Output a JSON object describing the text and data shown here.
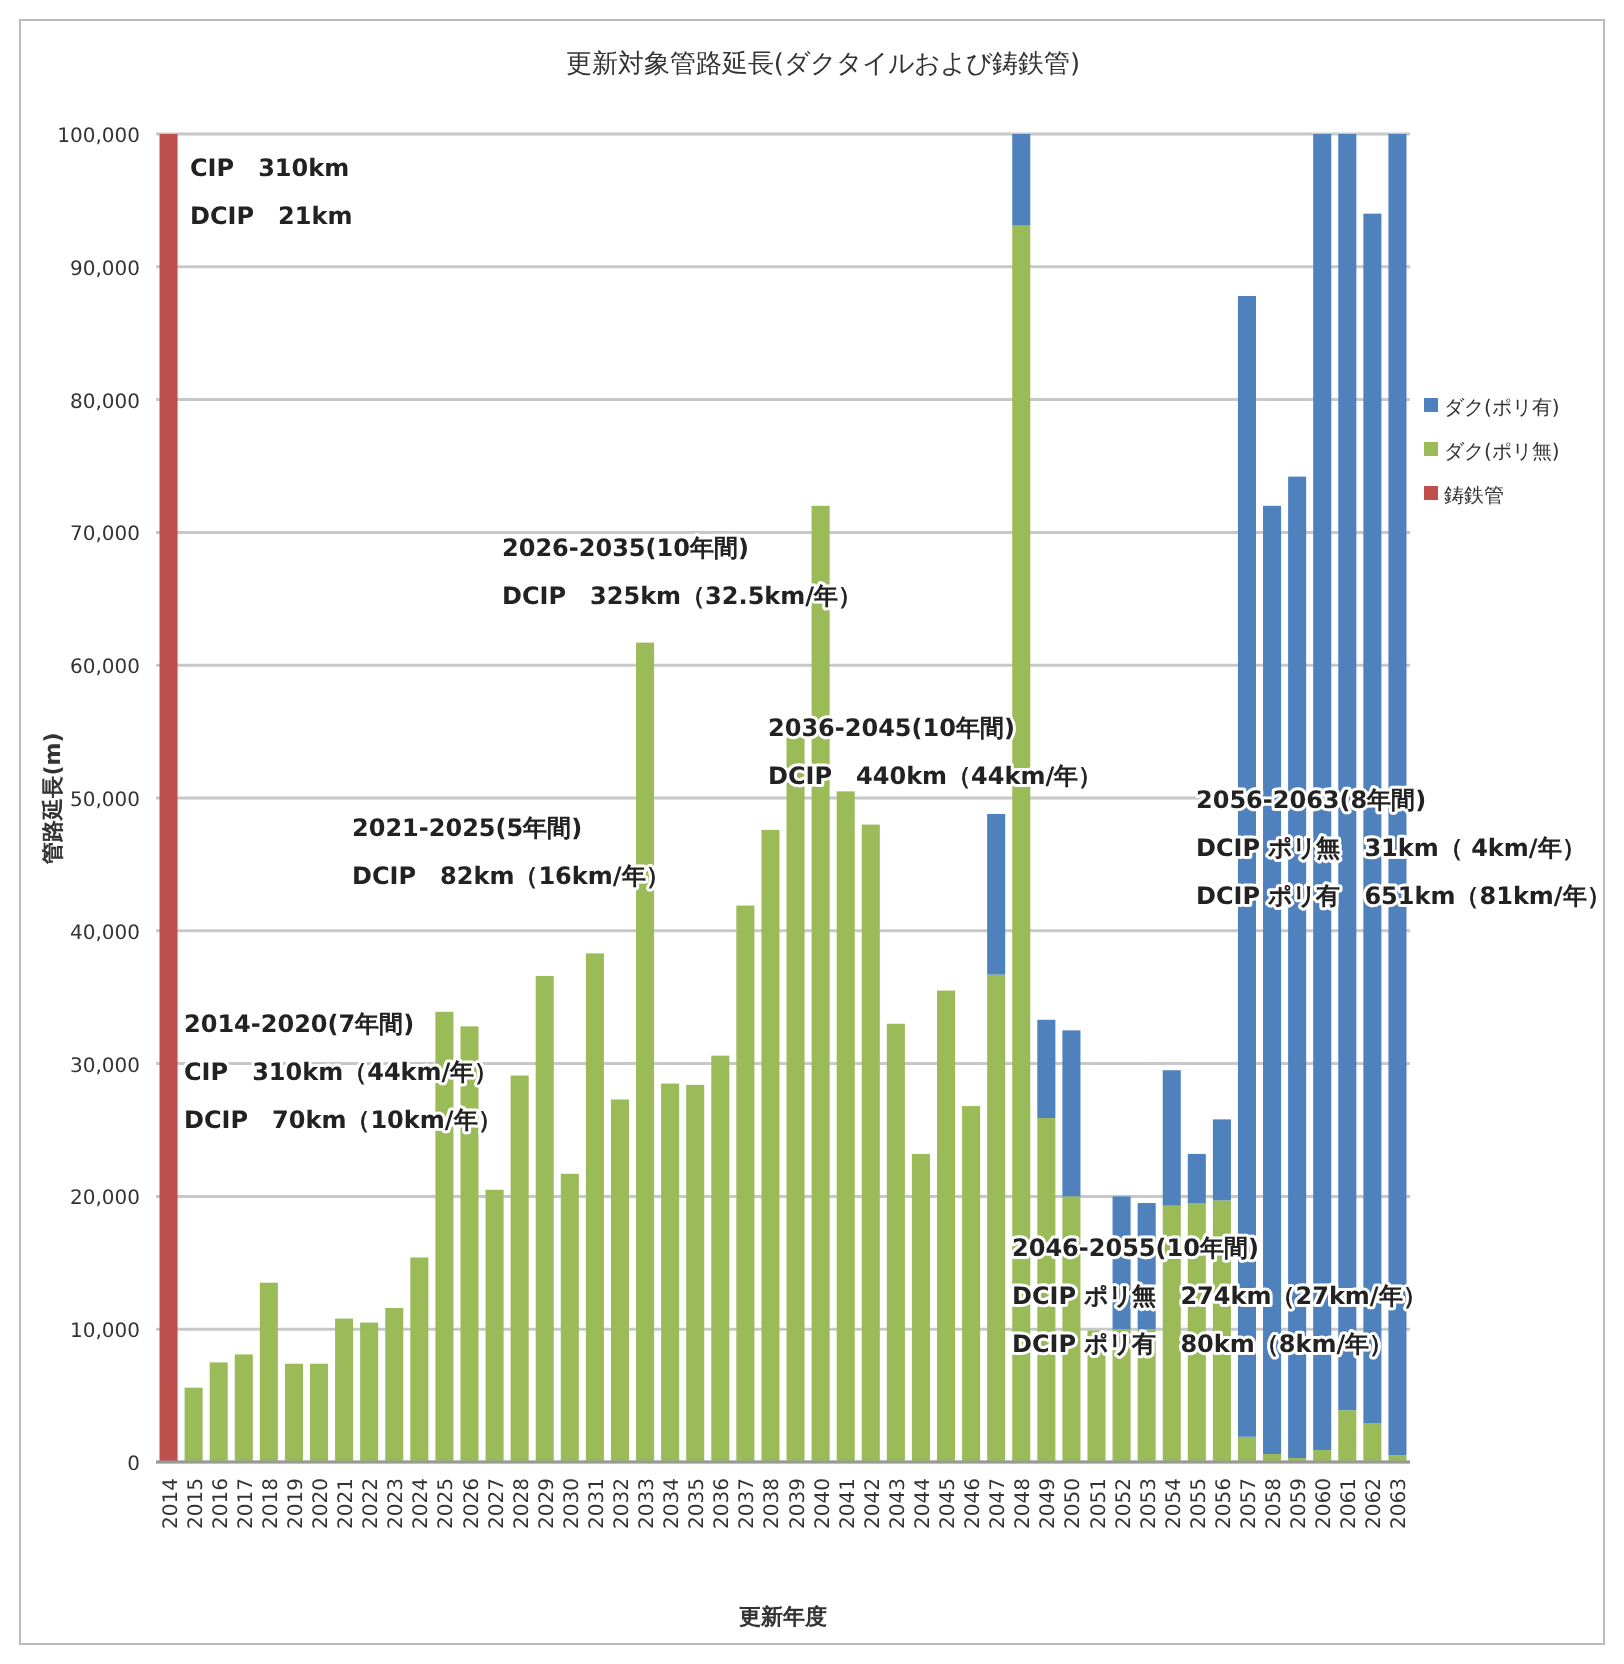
{
  "chart_data": {
    "type": "bar",
    "stacked": true,
    "title": "更新対象管路延長(ダクタイルおよび鋳鉄管)",
    "xlabel": "更新年度",
    "ylabel": "管路延長(m)",
    "categories": [
      "2014",
      "2015",
      "2016",
      "2017",
      "2018",
      "2019",
      "2020",
      "2021",
      "2022",
      "2023",
      "2024",
      "2025",
      "2026",
      "2027",
      "2028",
      "2029",
      "2030",
      "2031",
      "2032",
      "2033",
      "2034",
      "2035",
      "2036",
      "2037",
      "2038",
      "2039",
      "2040",
      "2041",
      "2042",
      "2043",
      "2044",
      "2045",
      "2046",
      "2047",
      "2048",
      "2049",
      "2050",
      "2051",
      "2052",
      "2053",
      "2054",
      "2055",
      "2056",
      "2057",
      "2058",
      "2059",
      "2060",
      "2061",
      "2062",
      "2063"
    ],
    "series": [
      {
        "name": "鋳鉄管",
        "color": "#c0504d",
        "values": [
          100000,
          0,
          0,
          0,
          0,
          0,
          0,
          0,
          0,
          0,
          0,
          0,
          0,
          0,
          0,
          0,
          0,
          0,
          0,
          0,
          0,
          0,
          0,
          0,
          0,
          0,
          0,
          0,
          0,
          0,
          0,
          0,
          0,
          0,
          0,
          0,
          0,
          0,
          0,
          0,
          0,
          0,
          0,
          0,
          0,
          0,
          0,
          0,
          0,
          0
        ]
      },
      {
        "name": "ダク(ポリ無)",
        "color": "#9bbb59",
        "values": [
          0,
          5600,
          7500,
          8100,
          13500,
          7400,
          7400,
          10800,
          10500,
          11600,
          15400,
          33900,
          32800,
          20500,
          29100,
          36600,
          21700,
          38300,
          27300,
          61700,
          28500,
          28400,
          30600,
          41900,
          47600,
          54800,
          72000,
          50500,
          48000,
          33000,
          23200,
          35500,
          26800,
          36700,
          93100,
          25900,
          20000,
          9900,
          10000,
          10000,
          19300,
          19500,
          19700,
          1900,
          600,
          300,
          900,
          3900,
          2900,
          500
        ]
      },
      {
        "name": "ダク(ポリ有)",
        "color": "#4f81bd",
        "values": [
          0,
          0,
          0,
          0,
          0,
          0,
          0,
          0,
          0,
          0,
          0,
          0,
          0,
          0,
          0,
          0,
          0,
          0,
          0,
          0,
          0,
          0,
          0,
          0,
          0,
          0,
          0,
          0,
          0,
          0,
          0,
          0,
          0,
          12100,
          6900,
          7400,
          12500,
          0,
          10000,
          9500,
          10200,
          3700,
          6100,
          85900,
          71400,
          73900,
          99100,
          96100,
          91100,
          99500
        ]
      }
    ],
    "ylim": [
      0,
      100000
    ],
    "yticks": [
      {
        "value": 0,
        "label": "0"
      },
      {
        "value": 10000,
        "label": "10,000"
      },
      {
        "value": 20000,
        "label": "20,000"
      },
      {
        "value": 30000,
        "label": "30,000"
      },
      {
        "value": 40000,
        "label": "40,000"
      },
      {
        "value": 50000,
        "label": "50,000"
      },
      {
        "value": 60000,
        "label": "60,000"
      },
      {
        "value": 70000,
        "label": "70,000"
      },
      {
        "value": 80000,
        "label": "80,000"
      },
      {
        "value": 90000,
        "label": "90,000"
      },
      {
        "value": 100000,
        "label": "100,000"
      }
    ],
    "grid": "y",
    "legend": "right",
    "annotations": [
      "CIP　310km\nDCIP　21km",
      "2014-2020(7年間)\nCIP　310km（44km/年）\nDCIP　70km（10km/年）",
      "2021-2025(5年間)\nDCIP　82km（16km/年）",
      "2026-2035(10年間)\nDCIP　325km（32.5km/年）",
      "2036-2045(10年間)\nDCIP　440km（44km/年）",
      "2046-2055(10年間)\nDCIP ポリ無　274km（27km/年）\nDCIP ポリ有　80km（8km/年）",
      "2056-2063(8年間)\nDCIP ポリ無　31km（ 4km/年）\nDCIP ポリ有　651km（81km/年）"
    ]
  }
}
